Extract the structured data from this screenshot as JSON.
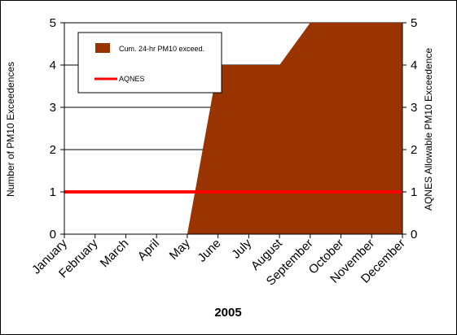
{
  "chart_data": {
    "type": "area",
    "categories": [
      "January",
      "February",
      "March",
      "April",
      "May",
      "June",
      "July",
      "August",
      "September",
      "October",
      "November",
      "December"
    ],
    "series": [
      {
        "name": "Cum. 24-hr PM10 exceed.",
        "type": "area",
        "color": "#993300",
        "values": [
          0,
          0,
          0,
          0,
          0,
          4,
          4,
          4,
          5,
          5,
          5,
          5
        ]
      },
      {
        "name": "AQNES",
        "type": "line",
        "color": "#ff0000",
        "values": [
          1,
          1,
          1,
          1,
          1,
          1,
          1,
          1,
          1,
          1,
          1,
          1
        ]
      }
    ],
    "xlabel": "2005",
    "ylabel": "Number of PM10 Exceedences",
    "y2label": "AQNES Allowable PM10 Exceedence",
    "ylim": [
      0,
      5
    ],
    "y2lim": [
      0,
      5
    ],
    "yticks": [
      0,
      1,
      2,
      3,
      4,
      5
    ],
    "grid": true,
    "legend_position": "top-left"
  }
}
